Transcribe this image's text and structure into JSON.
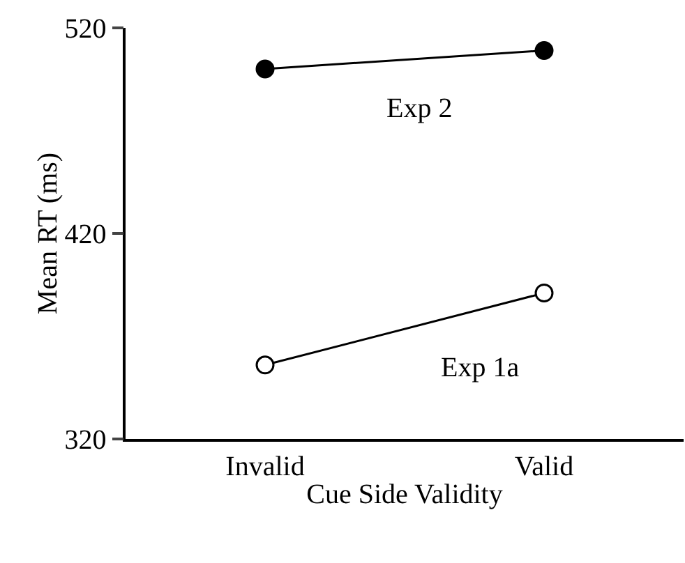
{
  "chart_data": {
    "type": "line",
    "xlabel": "Cue Side Validity",
    "ylabel": "Mean RT (ms)",
    "categories": [
      "Invalid",
      "Valid"
    ],
    "series": [
      {
        "name": "Exp 2",
        "color": "#000000",
        "values": [
          500,
          509
        ]
      },
      {
        "name": "Exp 1a",
        "color": "#000000",
        "values": [
          356,
          391
        ]
      }
    ],
    "ylim": [
      320,
      520
    ],
    "yticks": [
      320,
      420,
      520
    ],
    "grid": false,
    "legend": false,
    "marker": "circle",
    "line_style": "solid"
  }
}
